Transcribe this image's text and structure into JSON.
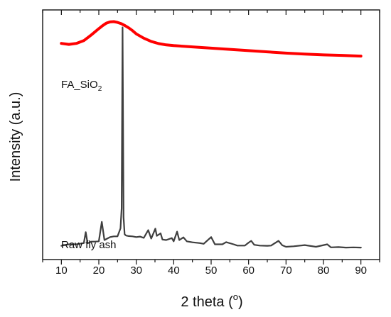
{
  "chart_data": {
    "type": "line",
    "xlabel": "2 theta (°)",
    "xlabel_parts": {
      "main": "2 theta (",
      "superscript": "o",
      "tail": ")"
    },
    "ylabel": "Intensity (a.u.)",
    "xlim": [
      5,
      95
    ],
    "ylim": [
      0,
      1
    ],
    "x_ticks": [
      10,
      20,
      30,
      40,
      50,
      60,
      70,
      80,
      90
    ],
    "y_tick_labels": false,
    "grid": false,
    "series": [
      {
        "name": "FA_SiO2",
        "label_parts": {
          "main": "FA_SiO",
          "subscript": "2"
        },
        "color": "#ff0000",
        "x": [
          10,
          12,
          14,
          16,
          18,
          20,
          21,
          22,
          23,
          24,
          25,
          26,
          27,
          28,
          29,
          30,
          32,
          34,
          36,
          38,
          40,
          45,
          50,
          55,
          60,
          65,
          70,
          75,
          80,
          85,
          90
        ],
        "y": [
          0.866,
          0.862,
          0.866,
          0.877,
          0.9,
          0.925,
          0.937,
          0.947,
          0.952,
          0.953,
          0.95,
          0.945,
          0.937,
          0.928,
          0.917,
          0.904,
          0.887,
          0.874,
          0.865,
          0.86,
          0.857,
          0.852,
          0.847,
          0.842,
          0.837,
          0.832,
          0.827,
          0.823,
          0.82,
          0.818,
          0.815
        ]
      },
      {
        "name": "Raw fly ash",
        "color": "#3f3f3f",
        "x": [
          10,
          12,
          14,
          16,
          16.5,
          17,
          18,
          19,
          20,
          20.8,
          21.5,
          22,
          23,
          24,
          25,
          25.8,
          26.1,
          26.35,
          26.6,
          26.9,
          27.3,
          28,
          29,
          30,
          31,
          32,
          33.2,
          34,
          35.1,
          35.5,
          36.5,
          37,
          38,
          39.5,
          40,
          40.9,
          41.5,
          42.6,
          43.5,
          45,
          47,
          48,
          50,
          51,
          53,
          54,
          56,
          57,
          59,
          60,
          60.7,
          61.5,
          63,
          65,
          66,
          68,
          69,
          70,
          72,
          75,
          78,
          81,
          82,
          84,
          86,
          88,
          90
        ],
        "y": [
          0.055,
          0.061,
          0.061,
          0.066,
          0.11,
          0.065,
          0.072,
          0.072,
          0.073,
          0.151,
          0.078,
          0.082,
          0.09,
          0.093,
          0.093,
          0.125,
          0.205,
          0.93,
          0.17,
          0.101,
          0.096,
          0.094,
          0.093,
          0.09,
          0.092,
          0.087,
          0.118,
          0.084,
          0.124,
          0.095,
          0.105,
          0.08,
          0.078,
          0.086,
          0.073,
          0.112,
          0.078,
          0.089,
          0.073,
          0.069,
          0.066,
          0.063,
          0.09,
          0.061,
          0.061,
          0.07,
          0.061,
          0.056,
          0.056,
          0.068,
          0.075,
          0.059,
          0.056,
          0.055,
          0.056,
          0.075,
          0.057,
          0.051,
          0.053,
          0.058,
          0.051,
          0.061,
          0.049,
          0.05,
          0.048,
          0.049,
          0.048
        ]
      }
    ]
  }
}
